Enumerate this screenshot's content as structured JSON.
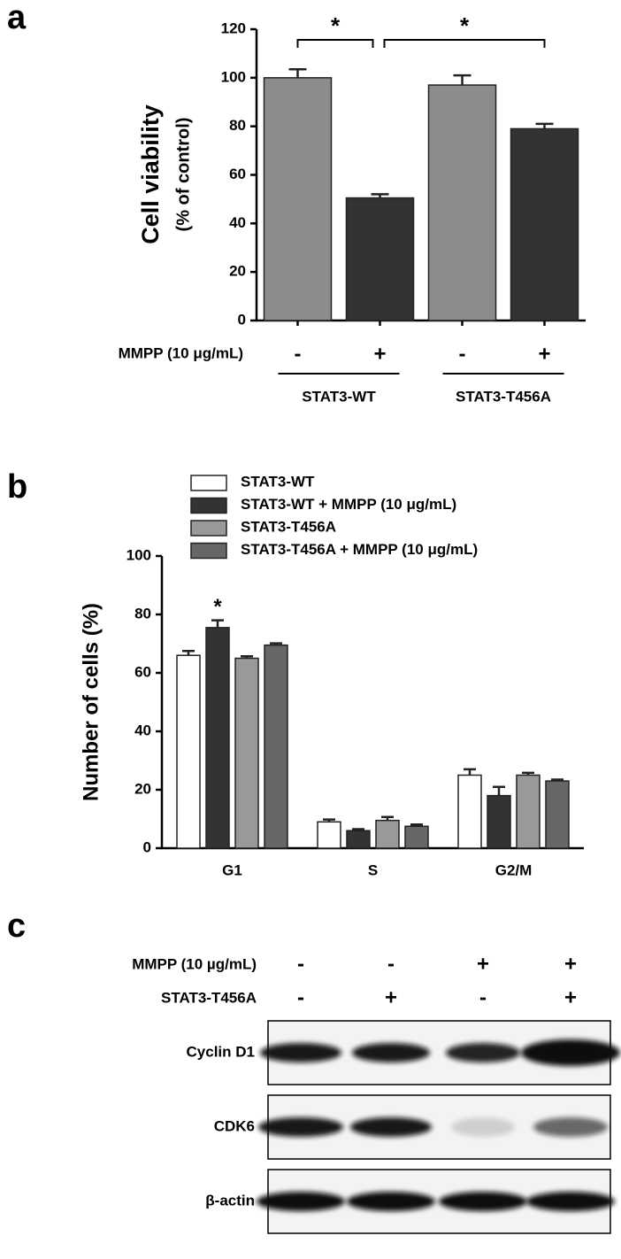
{
  "panel_labels": [
    "a",
    "b",
    "c"
  ],
  "chart_data": [
    {
      "type": "bar",
      "ylabel": "Cell viability",
      "ylabel_sub": "(% of control)",
      "categories": [
        "-",
        "+",
        "-",
        "+"
      ],
      "values": [
        100,
        50.5,
        97,
        79
      ],
      "errors": [
        3.5,
        1.5,
        4,
        2
      ],
      "colors": [
        "#8c8c8c",
        "#333333",
        "#8c8c8c",
        "#333333"
      ],
      "ylim": [
        0,
        120
      ],
      "yticks": [
        0,
        20,
        40,
        60,
        80,
        100,
        120
      ],
      "row_label": "MMPP (10 μg/mL)",
      "groups": [
        "STAT3-WT",
        "STAT3-T456A"
      ],
      "annotations": [
        "*",
        "*"
      ]
    },
    {
      "type": "grouped_bar",
      "ylabel": "Number of cells (%)",
      "categories": [
        "G1",
        "S",
        "G2/M"
      ],
      "series": [
        {
          "name": "STAT3-WT",
          "color": "#ffffff",
          "values": [
            66,
            9,
            25
          ],
          "errors": [
            1.5,
            0.8,
            2
          ]
        },
        {
          "name": "STAT3-WT + MMPP (10 μg/mL)",
          "color": "#333333",
          "values": [
            75.5,
            6,
            18
          ],
          "errors": [
            2.5,
            0.5,
            3
          ]
        },
        {
          "name": "STAT3-T456A",
          "color": "#999999",
          "values": [
            65,
            9.5,
            25
          ],
          "errors": [
            0.7,
            1.2,
            0.8
          ]
        },
        {
          "name": "STAT3-T456A + MMPP (10 μg/mL)",
          "color": "#666666",
          "values": [
            69.5,
            7.5,
            23
          ],
          "errors": [
            0.6,
            0.6,
            0.5
          ]
        }
      ],
      "ylim": [
        0,
        100
      ],
      "yticks": [
        0,
        20,
        40,
        60,
        80,
        100
      ],
      "annotation": "*"
    }
  ],
  "blot": {
    "rows": [
      {
        "label": "MMPP (10 µg/mL)",
        "signs": [
          "-",
          "-",
          "+",
          "+"
        ]
      },
      {
        "label": "STAT3-T456A",
        "signs": [
          "-",
          "+",
          "-",
          "+"
        ]
      }
    ],
    "bands": [
      "Cyclin D1",
      "CDK6",
      "β-actin"
    ]
  }
}
